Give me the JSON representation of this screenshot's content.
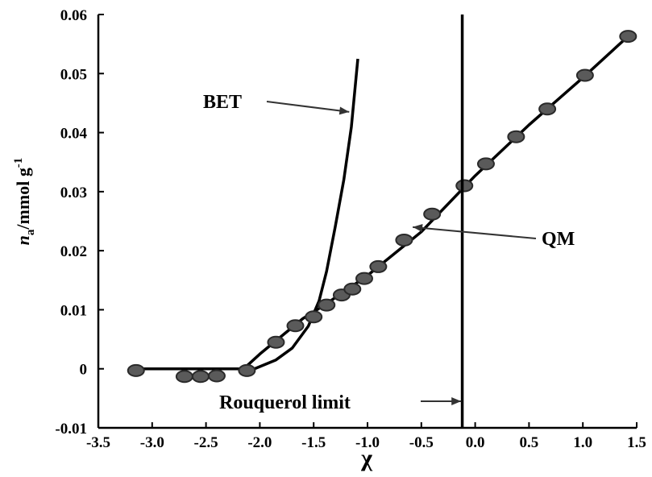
{
  "chart_data": {
    "type": "scatter",
    "xlabel": "χ",
    "ylabel": {
      "symbol": "n",
      "subscript": "a",
      "unit": "/mmol g",
      "superscript": "-1"
    },
    "xlim": [
      -3.5,
      1.5
    ],
    "ylim": [
      -0.01,
      0.06
    ],
    "x_ticks": [
      "-3.5",
      "-3.0",
      "-2.5",
      "-2.0",
      "-1.5",
      "-1.0",
      "-0.5",
      "0.0",
      "0.5",
      "1.0",
      "1.5"
    ],
    "x_tick_values": [
      -3.5,
      -3.0,
      -2.5,
      -2.0,
      -1.5,
      -1.0,
      -0.5,
      0.0,
      0.5,
      1.0,
      1.5
    ],
    "y_ticks": [
      "-0.01",
      "0",
      "0.01",
      "0.02",
      "0.03",
      "0.04",
      "0.05",
      "0.06"
    ],
    "y_tick_values": [
      -0.01,
      0,
      0.01,
      0.02,
      0.03,
      0.04,
      0.05,
      0.06
    ],
    "grid": false,
    "series": [
      {
        "style": "markers",
        "color": "#5a5a5a",
        "points": [
          [
            -3.15,
            -0.0003
          ],
          [
            -2.7,
            -0.0013
          ],
          [
            -2.55,
            -0.0013
          ],
          [
            -2.4,
            -0.0012
          ],
          [
            -2.12,
            -0.0003
          ],
          [
            -1.85,
            0.0045
          ],
          [
            -1.67,
            0.0073
          ],
          [
            -1.5,
            0.0088
          ],
          [
            -1.38,
            0.0108
          ],
          [
            -1.24,
            0.0125
          ],
          [
            -1.14,
            0.0135
          ],
          [
            -1.03,
            0.0153
          ],
          [
            -0.9,
            0.0173
          ],
          [
            -0.66,
            0.0218
          ],
          [
            -0.4,
            0.0262
          ],
          [
            -0.1,
            0.031
          ],
          [
            0.1,
            0.0347
          ],
          [
            0.38,
            0.0393
          ],
          [
            0.67,
            0.044
          ],
          [
            1.02,
            0.0497
          ],
          [
            1.42,
            0.0563
          ]
        ]
      },
      {
        "name": "QM",
        "style": "line",
        "color": "#000000",
        "points": [
          [
            -3.15,
            0
          ],
          [
            -2.15,
            0
          ],
          [
            -2.0,
            0.0025
          ],
          [
            -1.8,
            0.0055
          ],
          [
            -1.6,
            0.0085
          ],
          [
            -1.4,
            0.0108
          ],
          [
            -1.0,
            0.0158
          ],
          [
            -0.5,
            0.0232
          ],
          [
            0.0,
            0.0327
          ],
          [
            0.5,
            0.0413
          ],
          [
            1.0,
            0.0493
          ],
          [
            1.42,
            0.0563
          ]
        ]
      },
      {
        "name": "BET",
        "style": "line",
        "color": "#000000",
        "points": [
          [
            -2.05,
            0.0
          ],
          [
            -1.85,
            0.0015
          ],
          [
            -1.7,
            0.0035
          ],
          [
            -1.55,
            0.0072
          ],
          [
            -1.45,
            0.0115
          ],
          [
            -1.38,
            0.0165
          ],
          [
            -1.3,
            0.024
          ],
          [
            -1.22,
            0.032
          ],
          [
            -1.15,
            0.041
          ],
          [
            -1.09,
            0.0525
          ]
        ]
      }
    ],
    "vertical_line": {
      "x": -0.12,
      "color": "#000000"
    },
    "annotations": [
      {
        "text": "BET",
        "arrow_to": [
          -1.17,
          0.0435
        ]
      },
      {
        "text": "QM",
        "arrow_to": [
          -0.58,
          0.024
        ]
      },
      {
        "text": "Rouquerol limit",
        "arrow_to": [
          -0.13,
          -0.0055
        ]
      }
    ]
  }
}
